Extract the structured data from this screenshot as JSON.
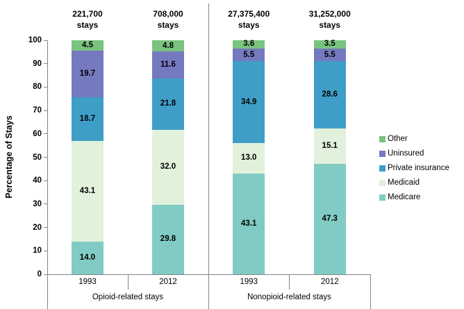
{
  "chart_data": {
    "type": "bar",
    "stacked": true,
    "ylabel": "Percentage of Stays",
    "ylim": [
      0,
      100
    ],
    "yticks": [
      0,
      10,
      20,
      30,
      40,
      50,
      60,
      70,
      80,
      90,
      100
    ],
    "grid": false,
    "legend_position": "right",
    "segment_order_bottom_to_top": [
      "Medicare",
      "Medicaid",
      "Private insurance",
      "Uninsured",
      "Other"
    ],
    "colors": {
      "Other": "#79C37F",
      "Uninsured": "#7579BF",
      "Private insurance": "#3F9EC8",
      "Medicaid": "#E1F1DC",
      "Medicare": "#80CCC4",
      "axis_line": "#848484"
    },
    "groups": [
      {
        "label": "Opioid-related stays",
        "bars": [
          {
            "year": "1993",
            "count": "221,700",
            "unit": "stays",
            "segments": [
              {
                "name": "Medicare",
                "pct": 14.0,
                "label": "14.0"
              },
              {
                "name": "Medicaid",
                "pct": 43.1,
                "label": "43.1"
              },
              {
                "name": "Private insurance",
                "pct": 18.7,
                "label": "18.7"
              },
              {
                "name": "Uninsured",
                "pct": 19.7,
                "label": "19.7"
              },
              {
                "name": "Other",
                "pct": 4.5,
                "label": "4.5"
              }
            ]
          },
          {
            "year": "2012",
            "count": "708,000",
            "unit": "stays",
            "segments": [
              {
                "name": "Medicare",
                "pct": 29.8,
                "label": "29.8"
              },
              {
                "name": "Medicaid",
                "pct": 32.0,
                "label": "32.0"
              },
              {
                "name": "Private insurance",
                "pct": 21.8,
                "label": "21.8"
              },
              {
                "name": "Uninsured",
                "pct": 11.6,
                "label": "11.6"
              },
              {
                "name": "Other",
                "pct": 4.8,
                "label": "4.8"
              }
            ]
          }
        ]
      },
      {
        "label": "Nonopioid-related stays",
        "bars": [
          {
            "year": "1993",
            "count": "27,375,400",
            "unit": "stays",
            "segments": [
              {
                "name": "Medicare",
                "pct": 43.1,
                "label": "43.1"
              },
              {
                "name": "Medicaid",
                "pct": 13.0,
                "label": "13.0"
              },
              {
                "name": "Private insurance",
                "pct": 34.9,
                "label": "34.9"
              },
              {
                "name": "Uninsured",
                "pct": 5.5,
                "label": "5.5"
              },
              {
                "name": "Other",
                "pct": 3.6,
                "label": "3.6"
              }
            ]
          },
          {
            "year": "2012",
            "count": "31,252,000",
            "unit": "stays",
            "segments": [
              {
                "name": "Medicare",
                "pct": 47.3,
                "label": "47.3"
              },
              {
                "name": "Medicaid",
                "pct": 15.1,
                "label": "15.1"
              },
              {
                "name": "Private insurance",
                "pct": 28.6,
                "label": "28.6"
              },
              {
                "name": "Uninsured",
                "pct": 5.5,
                "label": "5.5"
              },
              {
                "name": "Other",
                "pct": 3.5,
                "label": "3.5"
              }
            ]
          }
        ]
      }
    ],
    "legend": [
      {
        "label": "Other"
      },
      {
        "label": "Uninsured"
      },
      {
        "label": "Private insurance"
      },
      {
        "label": "Medicaid"
      },
      {
        "label": "Medicare"
      }
    ]
  }
}
